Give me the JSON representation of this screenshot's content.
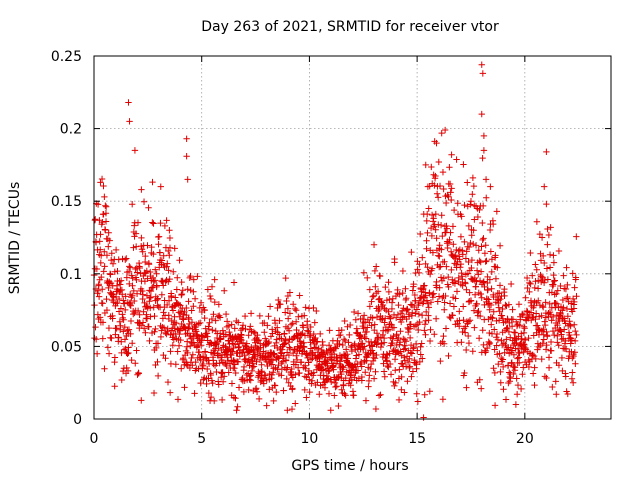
{
  "chart_data": {
    "type": "scatter",
    "title": "Day 263 of 2021, SRMTID for receiver vtor",
    "xlabel": "GPS time / hours",
    "ylabel": "SRMTID / TECUs",
    "xlim": [
      0,
      24
    ],
    "ylim": [
      0,
      0.25
    ],
    "x_ticks": [
      0,
      5,
      10,
      15,
      20
    ],
    "x_tick_labels": [
      "0",
      "5",
      "10",
      "15",
      "20"
    ],
    "y_ticks": [
      0,
      0.05,
      0.1,
      0.15,
      0.2,
      0.25
    ],
    "y_tick_labels": [
      "0",
      "0.05",
      "0.1",
      "0.15",
      "0.2",
      "0.25"
    ],
    "grid": true,
    "marker": "plus",
    "color": "#e00000",
    "series": [
      {
        "name": "SRMTID",
        "profile": [
          {
            "x": 0.0,
            "y": 0.085
          },
          {
            "x": 0.5,
            "y": 0.1
          },
          {
            "x": 1.0,
            "y": 0.08
          },
          {
            "x": 1.5,
            "y": 0.075
          },
          {
            "x": 2.0,
            "y": 0.08
          },
          {
            "x": 3.0,
            "y": 0.085
          },
          {
            "x": 4.0,
            "y": 0.065
          },
          {
            "x": 5.0,
            "y": 0.05
          },
          {
            "x": 6.0,
            "y": 0.045
          },
          {
            "x": 7.0,
            "y": 0.045
          },
          {
            "x": 8.0,
            "y": 0.04
          },
          {
            "x": 9.0,
            "y": 0.05
          },
          {
            "x": 10.0,
            "y": 0.045
          },
          {
            "x": 11.0,
            "y": 0.035
          },
          {
            "x": 12.0,
            "y": 0.04
          },
          {
            "x": 13.0,
            "y": 0.06
          },
          {
            "x": 14.0,
            "y": 0.06
          },
          {
            "x": 14.5,
            "y": 0.055
          },
          {
            "x": 15.0,
            "y": 0.07
          },
          {
            "x": 15.5,
            "y": 0.11
          },
          {
            "x": 16.0,
            "y": 0.12
          },
          {
            "x": 17.0,
            "y": 0.09
          },
          {
            "x": 18.0,
            "y": 0.095
          },
          {
            "x": 18.5,
            "y": 0.08
          },
          {
            "x": 19.0,
            "y": 0.06
          },
          {
            "x": 19.5,
            "y": 0.045
          },
          {
            "x": 20.0,
            "y": 0.06
          },
          {
            "x": 21.0,
            "y": 0.08
          },
          {
            "x": 21.5,
            "y": 0.075
          },
          {
            "x": 22.0,
            "y": 0.06
          },
          {
            "x": 22.4,
            "y": 0.065
          }
        ],
        "peaks": [
          {
            "x": 1.6,
            "y": 0.218
          },
          {
            "x": 1.65,
            "y": 0.205
          },
          {
            "x": 1.9,
            "y": 0.185
          },
          {
            "x": 2.2,
            "y": 0.158
          },
          {
            "x": 3.1,
            "y": 0.16
          },
          {
            "x": 4.3,
            "y": 0.193
          },
          {
            "x": 4.3,
            "y": 0.181
          },
          {
            "x": 4.35,
            "y": 0.165
          },
          {
            "x": 0.3,
            "y": 0.163
          },
          {
            "x": 15.9,
            "y": 0.19
          },
          {
            "x": 16.3,
            "y": 0.199
          },
          {
            "x": 16.6,
            "y": 0.182
          },
          {
            "x": 16.2,
            "y": 0.17
          },
          {
            "x": 15.4,
            "y": 0.175
          },
          {
            "x": 15.5,
            "y": 0.16
          },
          {
            "x": 17.5,
            "y": 0.15
          },
          {
            "x": 17.8,
            "y": 0.145
          },
          {
            "x": 17.4,
            "y": 0.133
          },
          {
            "x": 18.0,
            "y": 0.244
          },
          {
            "x": 18.05,
            "y": 0.238
          },
          {
            "x": 18.0,
            "y": 0.21
          },
          {
            "x": 18.1,
            "y": 0.195
          },
          {
            "x": 18.1,
            "y": 0.185
          },
          {
            "x": 18.2,
            "y": 0.165
          },
          {
            "x": 18.4,
            "y": 0.16
          },
          {
            "x": 18.7,
            "y": 0.143
          },
          {
            "x": 21.0,
            "y": 0.184
          },
          {
            "x": 20.9,
            "y": 0.16
          },
          {
            "x": 21.0,
            "y": 0.148
          },
          {
            "x": 20.8,
            "y": 0.125
          },
          {
            "x": 13.0,
            "y": 0.12
          },
          {
            "x": 13.1,
            "y": 0.105
          },
          {
            "x": 8.9,
            "y": 0.097
          },
          {
            "x": 3.5,
            "y": 0.13
          },
          {
            "x": 5.6,
            "y": 0.096
          },
          {
            "x": 6.5,
            "y": 0.094
          },
          {
            "x": 15.3,
            "y": 0.001
          }
        ]
      }
    ]
  }
}
